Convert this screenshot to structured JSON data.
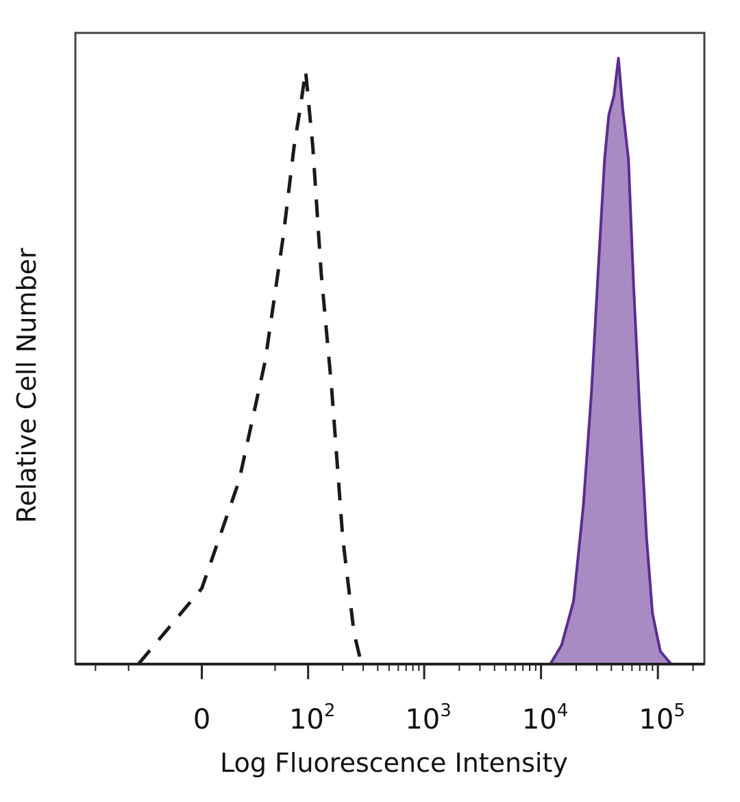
{
  "chart_data": {
    "type": "area",
    "xlabel": "Log Fluorescence Intensity",
    "ylabel": "Relative Cell Number",
    "x_scale": "biexponential",
    "x_ticks": [
      {
        "value": 0,
        "base": "0",
        "exp": ""
      },
      {
        "value": 100,
        "base": "10",
        "exp": "2"
      },
      {
        "value": 1000,
        "base": "10",
        "exp": "3"
      },
      {
        "value": 10000,
        "base": "10",
        "exp": "4"
      },
      {
        "value": 100000,
        "base": "10",
        "exp": "5"
      }
    ],
    "xlim": [
      -150,
      250000
    ],
    "ylim": [
      0,
      1.0
    ],
    "grid": false,
    "series": [
      {
        "style": "dashed",
        "color": "#1a1a1a",
        "fill": "none",
        "points": [
          [
            -40,
            0.0
          ],
          [
            0,
            0.12
          ],
          [
            20,
            0.29
          ],
          [
            40,
            0.48
          ],
          [
            60,
            0.68
          ],
          [
            75,
            0.82
          ],
          [
            85,
            0.88
          ],
          [
            95,
            0.94
          ],
          [
            110,
            0.82
          ],
          [
            130,
            0.62
          ],
          [
            160,
            0.44
          ],
          [
            200,
            0.2
          ],
          [
            250,
            0.05
          ],
          [
            290,
            0.0
          ]
        ]
      },
      {
        "style": "solid",
        "color": "#5b2d91",
        "fill": "#a98bc4",
        "points": [
          [
            12000,
            0.0
          ],
          [
            15000,
            0.03
          ],
          [
            19000,
            0.1
          ],
          [
            23000,
            0.25
          ],
          [
            27000,
            0.43
          ],
          [
            31000,
            0.63
          ],
          [
            35000,
            0.8
          ],
          [
            38000,
            0.87
          ],
          [
            42000,
            0.9
          ],
          [
            46000,
            0.96
          ],
          [
            50000,
            0.88
          ],
          [
            56000,
            0.8
          ],
          [
            62000,
            0.6
          ],
          [
            70000,
            0.4
          ],
          [
            80000,
            0.2
          ],
          [
            90000,
            0.08
          ],
          [
            105000,
            0.02
          ],
          [
            130000,
            0.0
          ]
        ]
      }
    ]
  }
}
